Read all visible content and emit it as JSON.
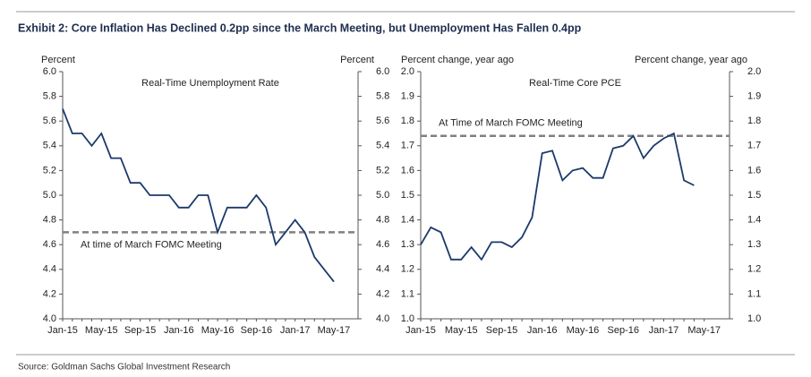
{
  "title": "Exhibit 2: Core Inflation Has Declined 0.2pp since the March Meeting, but Unemployment Has Fallen 0.4pp",
  "source": "Source: Goldman Sachs Global Investment Research",
  "chart_data": [
    {
      "type": "line",
      "title": "Real-Time Unemployment Rate",
      "y_label": "Percent",
      "y2_label": "Percent",
      "categories": [
        "Jan-15",
        null,
        null,
        null,
        "May-15",
        null,
        null,
        null,
        "Sep-15",
        null,
        null,
        null,
        "Jan-16",
        null,
        null,
        null,
        "May-16",
        null,
        null,
        null,
        "Sep-16",
        null,
        null,
        null,
        "Jan-17",
        null,
        null,
        null,
        "May-17"
      ],
      "values": [
        5.7,
        5.5,
        5.5,
        5.4,
        5.5,
        5.3,
        5.3,
        5.1,
        5.1,
        5.0,
        5.0,
        5.0,
        4.9,
        4.9,
        5.0,
        5.0,
        4.7,
        4.9,
        4.9,
        4.9,
        5.0,
        4.9,
        4.6,
        4.7,
        4.8,
        4.7,
        4.5,
        4.4,
        4.3
      ],
      "color": "#1b3a6b",
      "reference": {
        "value": 4.7,
        "label": "At time of March FOMC Meeting",
        "color": "#808080"
      },
      "ylim": [
        4.0,
        6.0
      ],
      "yticks": [
        {
          "value": 4.0,
          "label": "4.0"
        },
        4.2,
        4.4,
        4.6,
        4.8,
        {
          "value": 5.0,
          "label": "5.0"
        },
        5.2,
        5.4,
        5.6,
        5.8,
        {
          "value": 6.0,
          "label": "6.0"
        }
      ],
      "y2lim": [
        4.0,
        6.0
      ],
      "y2ticks": [
        {
          "value": 4.0,
          "label": "4.0"
        },
        4.2,
        4.4,
        4.6,
        4.8,
        {
          "value": 5.0,
          "label": "5.0"
        },
        5.2,
        5.4,
        5.6,
        5.8,
        {
          "value": 6.0,
          "label": "6.0"
        }
      ]
    },
    {
      "type": "line",
      "title": "Real-Time Core PCE",
      "y_label": "Percent change, year ago",
      "y2_label": "Percent change, year ago",
      "categories": [
        "Jan-15",
        null,
        null,
        null,
        "May-15",
        null,
        null,
        null,
        "Sep-15",
        null,
        null,
        null,
        "Jan-16",
        null,
        null,
        null,
        "May-16",
        null,
        null,
        null,
        "Sep-16",
        null,
        null,
        null,
        "Jan-17",
        null,
        null,
        null,
        "May-17"
      ],
      "values": [
        1.3,
        1.37,
        1.35,
        1.24,
        1.24,
        1.29,
        1.24,
        1.31,
        1.31,
        1.29,
        1.33,
        1.41,
        1.67,
        1.68,
        1.56,
        1.6,
        1.61,
        1.57,
        1.57,
        1.69,
        1.7,
        1.74,
        1.65,
        1.7,
        1.73,
        1.75,
        1.56,
        1.54,
        null
      ],
      "color": "#1b3a6b",
      "reference": {
        "value": 1.74,
        "label": "At Time of March FOMC Meeting",
        "color": "#808080"
      },
      "ylim": [
        1.0,
        2.0
      ],
      "yticks": [
        {
          "value": 1.0,
          "label": "1.0"
        },
        1.1,
        1.2,
        1.3,
        1.4,
        1.5,
        1.6,
        1.7,
        1.8,
        1.9,
        {
          "value": 2.0,
          "label": "2.0"
        }
      ],
      "y2lim": [
        1.0,
        2.0
      ],
      "y2ticks": [
        {
          "value": 1.0,
          "label": "1.0"
        },
        1.1,
        1.2,
        1.3,
        1.4,
        1.5,
        1.6,
        1.7,
        1.8,
        1.9,
        {
          "value": 2.0,
          "label": "2.0"
        }
      ]
    }
  ]
}
